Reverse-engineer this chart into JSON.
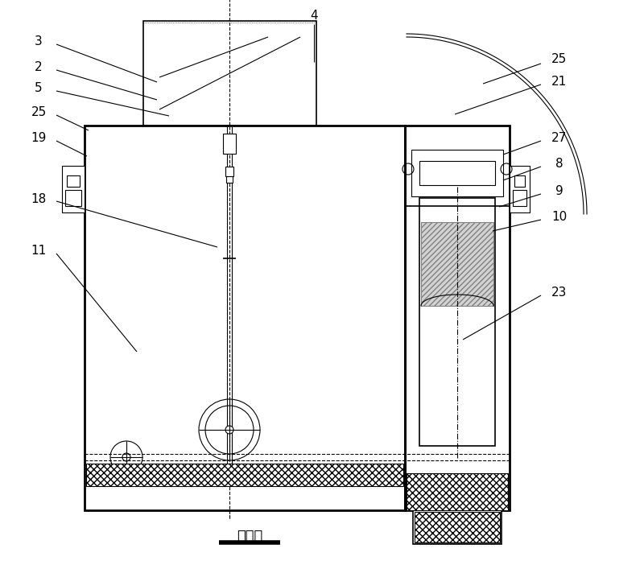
{
  "title": "左视图",
  "bg": "#ffffff",
  "lw_thin": 0.8,
  "lw_med": 1.2,
  "lw_thick": 2.0,
  "fontsize_label": 11,
  "fontsize_title": 13
}
